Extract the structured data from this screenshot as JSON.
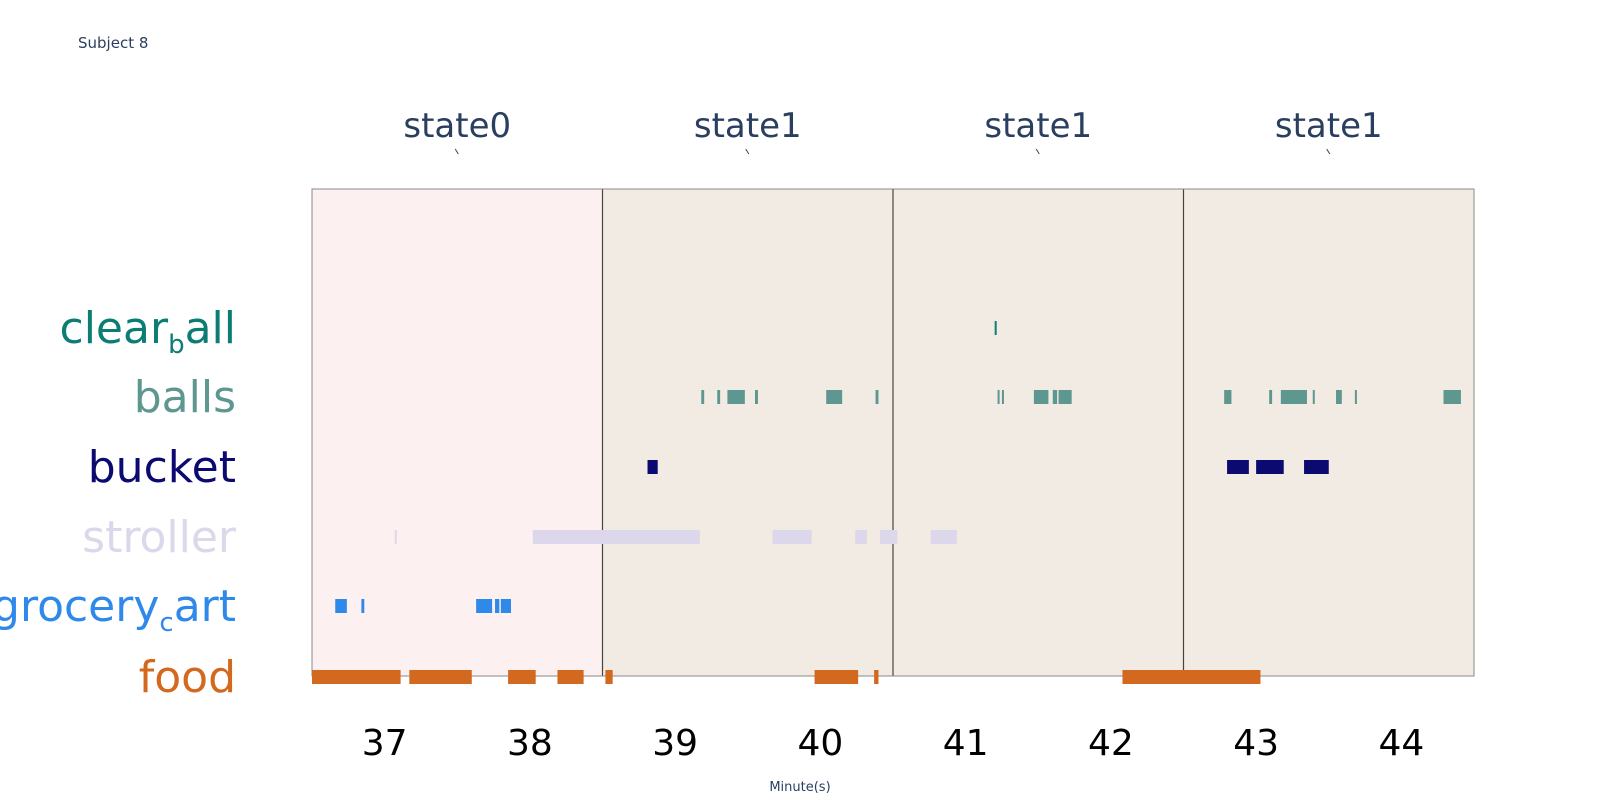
{
  "subject_label": "Subject 8",
  "chart_data": {
    "type": "timeline",
    "xlabel": "Minute(s)",
    "xlim": [
      36.5,
      44.5
    ],
    "xticks": [
      37,
      38,
      39,
      40,
      41,
      42,
      43,
      44
    ],
    "states": [
      {
        "label": "state0",
        "start": 36.5,
        "end": 38.5,
        "color": "#fdf0f0"
      },
      {
        "label": "state1",
        "start": 38.5,
        "end": 40.5,
        "color": "#f2ebe4"
      },
      {
        "label": "state1",
        "start": 40.5,
        "end": 42.5,
        "color": "#f2ebe4"
      },
      {
        "label": "state1",
        "start": 42.5,
        "end": 44.5,
        "color": "#f2ebe4"
      }
    ],
    "categories": [
      {
        "name": "clear_ball",
        "label_main": [
          "clear",
          "all"
        ],
        "label_sub": "b",
        "color": "#0b7d74",
        "events": [
          [
            41.2,
            41.21
          ]
        ]
      },
      {
        "name": "balls",
        "label_main": [
          "balls"
        ],
        "label_sub": "",
        "color": "#5e9690",
        "events": [
          [
            39.18,
            39.2
          ],
          [
            39.29,
            39.31
          ],
          [
            39.36,
            39.48
          ],
          [
            39.55,
            39.57
          ],
          [
            40.04,
            40.15
          ],
          [
            40.38,
            40.4
          ],
          [
            41.22,
            41.23
          ],
          [
            41.25,
            41.26
          ],
          [
            41.47,
            41.57
          ],
          [
            41.6,
            41.63
          ],
          [
            41.64,
            41.73
          ],
          [
            42.78,
            42.83
          ],
          [
            43.09,
            43.11
          ],
          [
            43.17,
            43.35
          ],
          [
            43.39,
            43.4
          ],
          [
            43.55,
            43.59
          ],
          [
            43.68,
            43.69
          ],
          [
            44.29,
            44.41
          ]
        ]
      },
      {
        "name": "bucket",
        "label_main": [
          "bucket"
        ],
        "label_sub": "",
        "color": "#0a0a70",
        "events": [
          [
            38.81,
            38.88
          ],
          [
            42.8,
            42.95
          ],
          [
            43.0,
            43.19
          ],
          [
            43.33,
            43.5
          ]
        ]
      },
      {
        "name": "stroller",
        "label_main": [
          "stroller"
        ],
        "label_sub": "",
        "color": "#dcd7ea",
        "events": [
          [
            37.07,
            37.08
          ],
          [
            38.02,
            38.48
          ],
          [
            38.48,
            39.17
          ],
          [
            39.67,
            39.94
          ],
          [
            40.24,
            40.32
          ],
          [
            40.41,
            40.53
          ],
          [
            40.76,
            40.94
          ]
        ]
      },
      {
        "name": "grocery_cart",
        "label_main": [
          "grocery",
          "art"
        ],
        "label_sub": "c",
        "color": "#2f89ea",
        "events": [
          [
            36.66,
            36.74
          ],
          [
            36.84,
            36.86
          ],
          [
            37.63,
            37.74
          ],
          [
            37.76,
            37.79
          ],
          [
            37.8,
            37.87
          ]
        ]
      },
      {
        "name": "food",
        "label_main": [
          "food"
        ],
        "label_sub": "",
        "color": "#d2691e",
        "events": [
          [
            36.5,
            37.11
          ],
          [
            37.17,
            37.6
          ],
          [
            37.85,
            38.04
          ],
          [
            38.19,
            38.37
          ],
          [
            38.52,
            38.57
          ],
          [
            39.96,
            40.26
          ],
          [
            40.37,
            40.4
          ],
          [
            42.08,
            43.03
          ]
        ]
      }
    ]
  }
}
